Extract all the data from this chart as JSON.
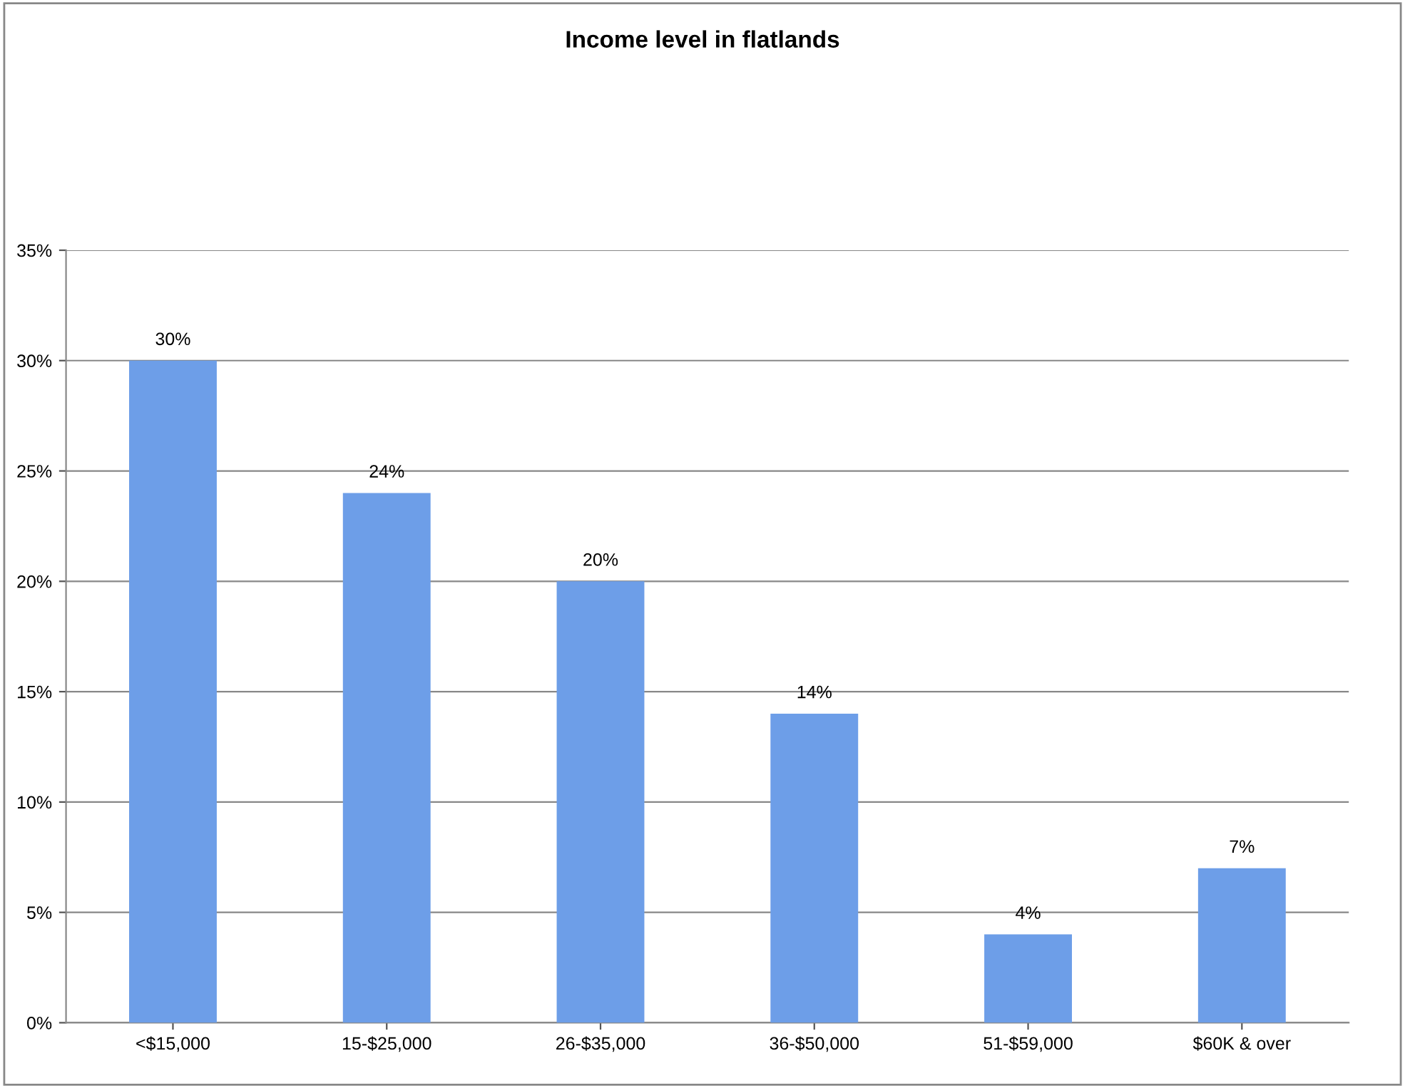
{
  "chart_data": {
    "type": "bar",
    "title": "Income level in flatlands",
    "categories": [
      "<$15,000",
      "15-$25,000",
      "26-$35,000",
      "36-$50,000",
      "51-$59,000",
      "$60K & over"
    ],
    "values": [
      30,
      24,
      20,
      14,
      4,
      7
    ],
    "value_labels": [
      "30%",
      "24%",
      "20%",
      "14%",
      "4%",
      "7%"
    ],
    "color": "#6d9ee8",
    "ylim": [
      0,
      35
    ],
    "yticks": [
      {
        "value": 0,
        "label": "0%"
      },
      {
        "value": 5,
        "label": "5%"
      },
      {
        "value": 10,
        "label": "10%"
      },
      {
        "value": 15,
        "label": "15%"
      },
      {
        "value": 20,
        "label": "20%"
      },
      {
        "value": 25,
        "label": "25%"
      },
      {
        "value": 30,
        "label": "30%"
      },
      {
        "value": 35,
        "label": "35%"
      }
    ],
    "grid": "y"
  }
}
